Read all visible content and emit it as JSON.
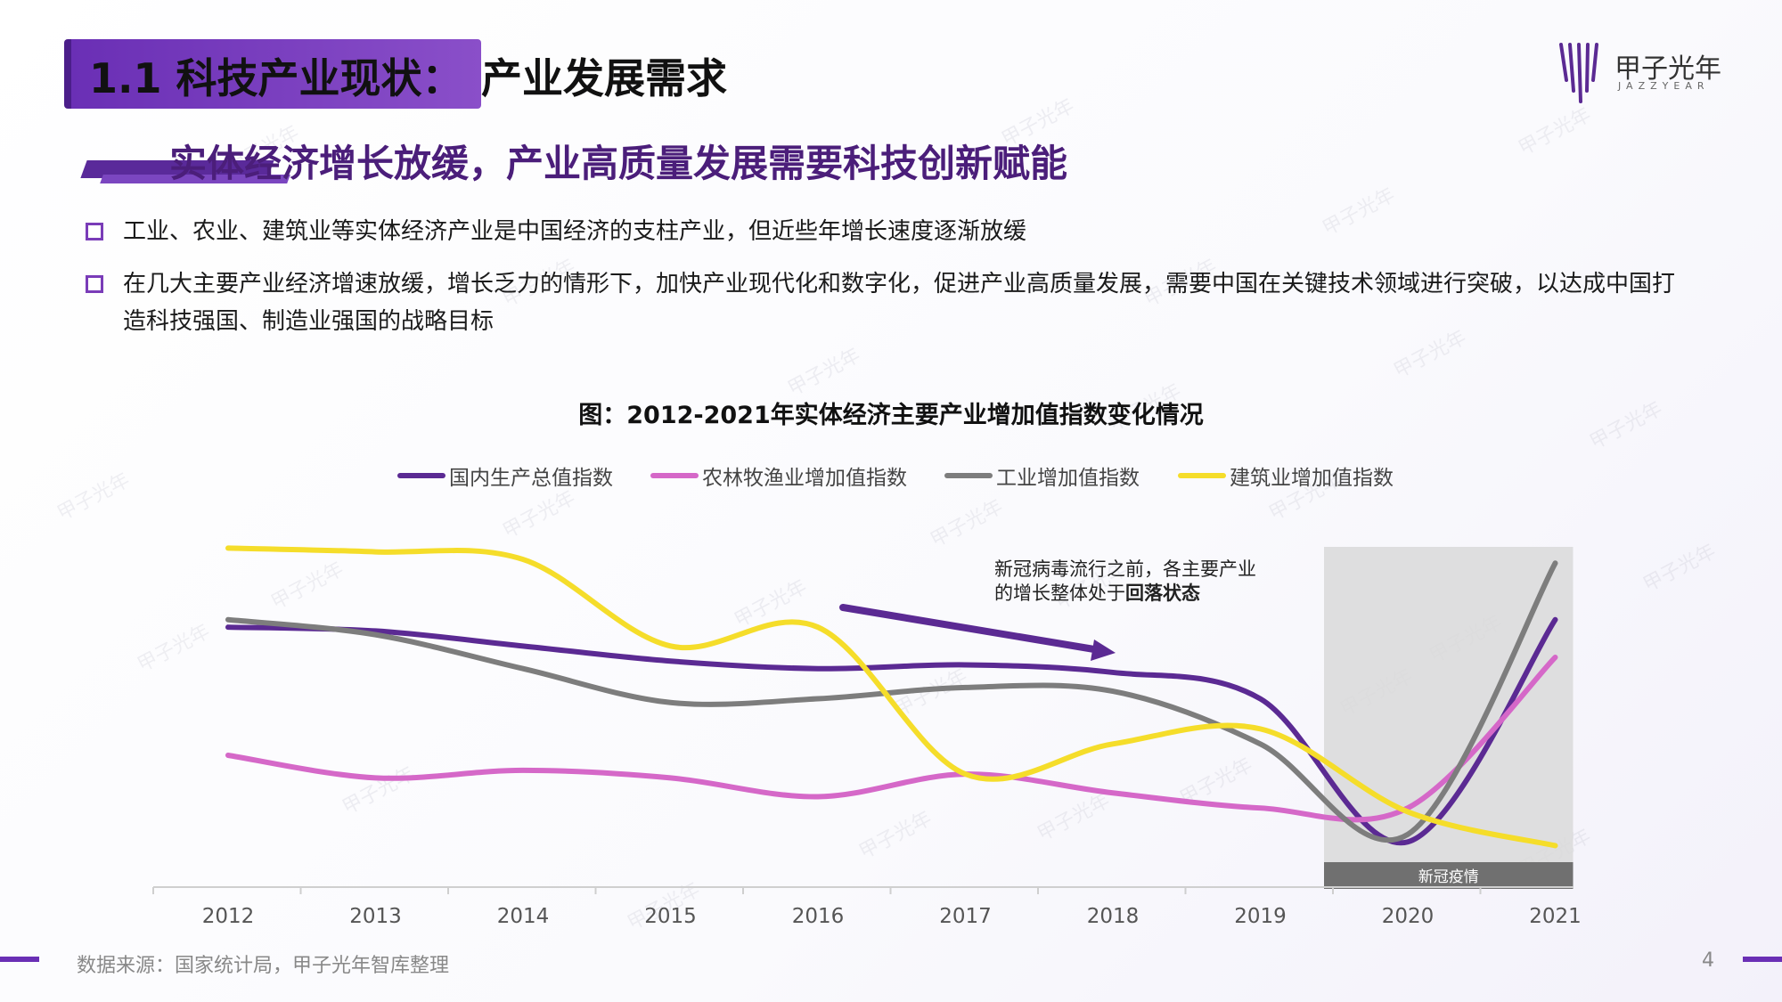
{
  "header": {
    "title_left": "1.1 科技产业现状：",
    "title_right": "产业发展需求",
    "logo_name": "甲子光年",
    "logo_en": "JAZZYEAR"
  },
  "subtitle": "实体经济增长放缓，产业高质量发展需要科技创新赋能",
  "bullets": [
    "工业、农业、建筑业等实体经济产业是中国经济的支柱产业，但近些年增长速度逐渐放缓",
    "在几大主要产业经济增速放缓，增长乏力的情形下，加快产业现代化和数字化，促进产业高质量发展，需要中国在关键技术领域进行突破，以达成中国打造科技强国、制造业强国的战略目标"
  ],
  "watermark_text": "甲子光年",
  "chart_data": {
    "type": "line",
    "title": "图：2012-2021年实体经济主要产业增加值指数变化情况",
    "categories": [
      "2012",
      "2013",
      "2014",
      "2015",
      "2016",
      "2017",
      "2018",
      "2019",
      "2020",
      "2021"
    ],
    "series": [
      {
        "name": "国内生产总值指数",
        "color": "#5b2a93",
        "values": [
          107.9,
          107.8,
          107.4,
          107.0,
          106.8,
          106.9,
          106.7,
          106.0,
          102.2,
          108.1
        ]
      },
      {
        "name": "农林牧渔业增加值指数",
        "color": "#d568c8",
        "values": [
          104.5,
          103.9,
          104.1,
          103.9,
          103.4,
          104.0,
          103.5,
          103.1,
          103.1,
          107.1
        ]
      },
      {
        "name": "工业增加值指数",
        "color": "#7d7d7d",
        "values": [
          108.1,
          107.7,
          106.8,
          105.9,
          106.0,
          106.3,
          106.2,
          104.8,
          102.4,
          109.6
        ]
      },
      {
        "name": "建筑业增加值指数",
        "color": "#f5dd2a",
        "values": [
          110.0,
          109.9,
          109.7,
          107.4,
          107.9,
          104.0,
          104.8,
          105.2,
          103.0,
          102.1
        ]
      }
    ],
    "ylim": [
      101.0,
      110.6
    ],
    "highlight": {
      "from": "2020",
      "label": "新冠疫情"
    },
    "annotation": {
      "text_prefix": "新冠病毒流行之前，各主要产业的增长整体处于",
      "text_bold": "回落状态"
    }
  },
  "footer": {
    "source": "数据来源：国家统计局，甲子光年智库整理",
    "page": "4"
  }
}
